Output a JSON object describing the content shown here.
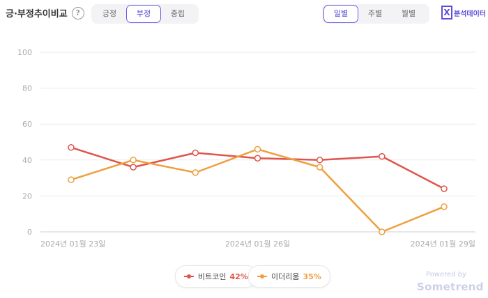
{
  "header": {
    "title": "긍·부정추이비교",
    "help_icon": "question-circle-icon",
    "sentiment_tabs": [
      {
        "label": "긍정",
        "active": false
      },
      {
        "label": "부정",
        "active": true
      },
      {
        "label": "중립",
        "active": false
      }
    ],
    "period_tabs": [
      {
        "label": "일별",
        "active": true
      },
      {
        "label": "주별",
        "active": false
      },
      {
        "label": "월별",
        "active": false
      }
    ],
    "excel_label": "분석데이터",
    "excel_icon": "excel-icon"
  },
  "chart_data": {
    "type": "line",
    "x": [
      "2024-01-23",
      "2024-01-24",
      "2024-01-25",
      "2024-01-26",
      "2024-01-27",
      "2024-01-28",
      "2024-01-29"
    ],
    "x_tick_labels": [
      "2024년 01월 23일",
      "2024년 01월 26일",
      "2024년 01월 29일"
    ],
    "x_tick_positions": [
      0,
      3,
      6
    ],
    "ylim": [
      0,
      100
    ],
    "yticks": [
      0,
      20,
      40,
      60,
      80,
      100
    ],
    "grid": true,
    "series": [
      {
        "name": "비트코인",
        "percent": "42%",
        "color": "#e0554a",
        "values": [
          47,
          36,
          44,
          41,
          40,
          42,
          24
        ]
      },
      {
        "name": "이더리움",
        "percent": "35%",
        "color": "#ee9f3f",
        "values": [
          29,
          40,
          33,
          46,
          36,
          0,
          14
        ]
      }
    ],
    "legend_position": "bottom-center"
  },
  "footer": {
    "powered_by": "Powered by",
    "brand": "Sometrend"
  }
}
